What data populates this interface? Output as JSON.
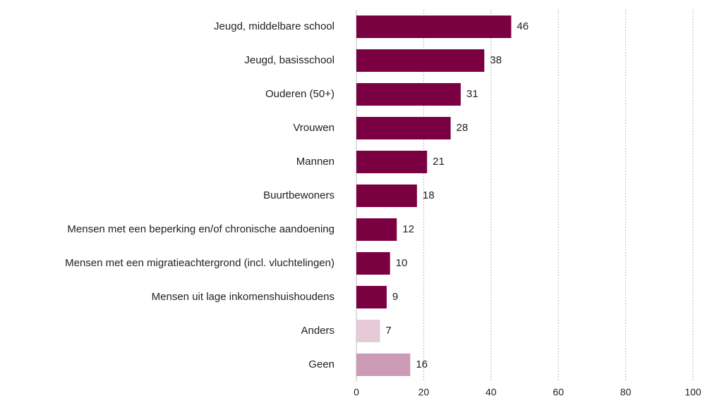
{
  "chart_data": {
    "type": "bar",
    "orientation": "horizontal",
    "categories": [
      "Jeugd, middelbare school",
      "Jeugd, basisschool",
      "Ouderen (50+)",
      "Vrouwen",
      "Mannen",
      "Buurtbewoners",
      "Mensen met een beperking en/of chronische aandoening",
      "Mensen met een migratieachtergrond (incl. vluchtelingen)",
      "Mensen uit lage inkomenshuishoudens",
      "Anders",
      "Geen"
    ],
    "values": [
      46,
      38,
      31,
      28,
      21,
      18,
      12,
      10,
      9,
      7,
      16
    ],
    "colors": [
      "#7b0041",
      "#7b0041",
      "#7b0041",
      "#7b0041",
      "#7b0041",
      "#7b0041",
      "#7b0041",
      "#7b0041",
      "#7b0041",
      "#e6cad8",
      "#cc9bb6"
    ],
    "xlim": [
      0,
      100
    ],
    "xticks": [
      0,
      20,
      40,
      60,
      80,
      100
    ],
    "grid": true
  }
}
